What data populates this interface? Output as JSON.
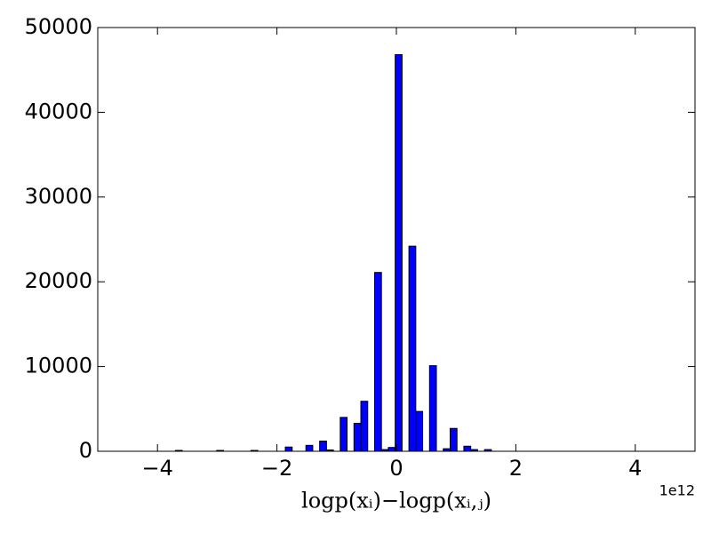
{
  "chart_data": {
    "type": "histogram",
    "bins": [
      -3.7,
      -3.585,
      -3.47,
      -3.355,
      -3.24,
      -3.125,
      -3.01,
      -2.895,
      -2.78,
      -2.665,
      -2.55,
      -2.435,
      -2.32,
      -2.205,
      -2.09,
      -1.975,
      -1.86,
      -1.745,
      -1.63,
      -1.515,
      -1.4,
      -1.285,
      -1.17,
      -1.055,
      -0.94,
      -0.825,
      -0.71,
      -0.595,
      -0.48,
      -0.365,
      -0.25,
      -0.135,
      -0.02,
      0.095,
      0.21,
      0.325,
      0.44,
      0.555,
      0.67,
      0.785,
      0.9,
      1.015,
      1.13,
      1.245,
      1.36,
      1.475,
      1.59
    ],
    "values": [
      100,
      0,
      0,
      0,
      0,
      0,
      100,
      0,
      0,
      0,
      0,
      100,
      0,
      0,
      0,
      0,
      500,
      0,
      0,
      700,
      0,
      1200,
      150,
      0,
      4000,
      0,
      3300,
      5900,
      0,
      21100,
      200,
      450,
      46800,
      0,
      24200,
      4700,
      0,
      10100,
      0,
      300,
      2700,
      0,
      600,
      200,
      0,
      200
    ],
    "color": "#0000ff",
    "xlabel": "logp(xᵢ)−logp(xᵢ,ⱼ)",
    "x_offset_label": "1e12",
    "xlim": [
      -5,
      5
    ],
    "xticks": [
      {
        "value": -4,
        "label": "−4"
      },
      {
        "value": -2,
        "label": "−2"
      },
      0,
      2,
      4
    ],
    "ylim": [
      0,
      50000
    ],
    "yticks": [
      0,
      10000,
      20000,
      30000,
      40000,
      50000
    ]
  }
}
